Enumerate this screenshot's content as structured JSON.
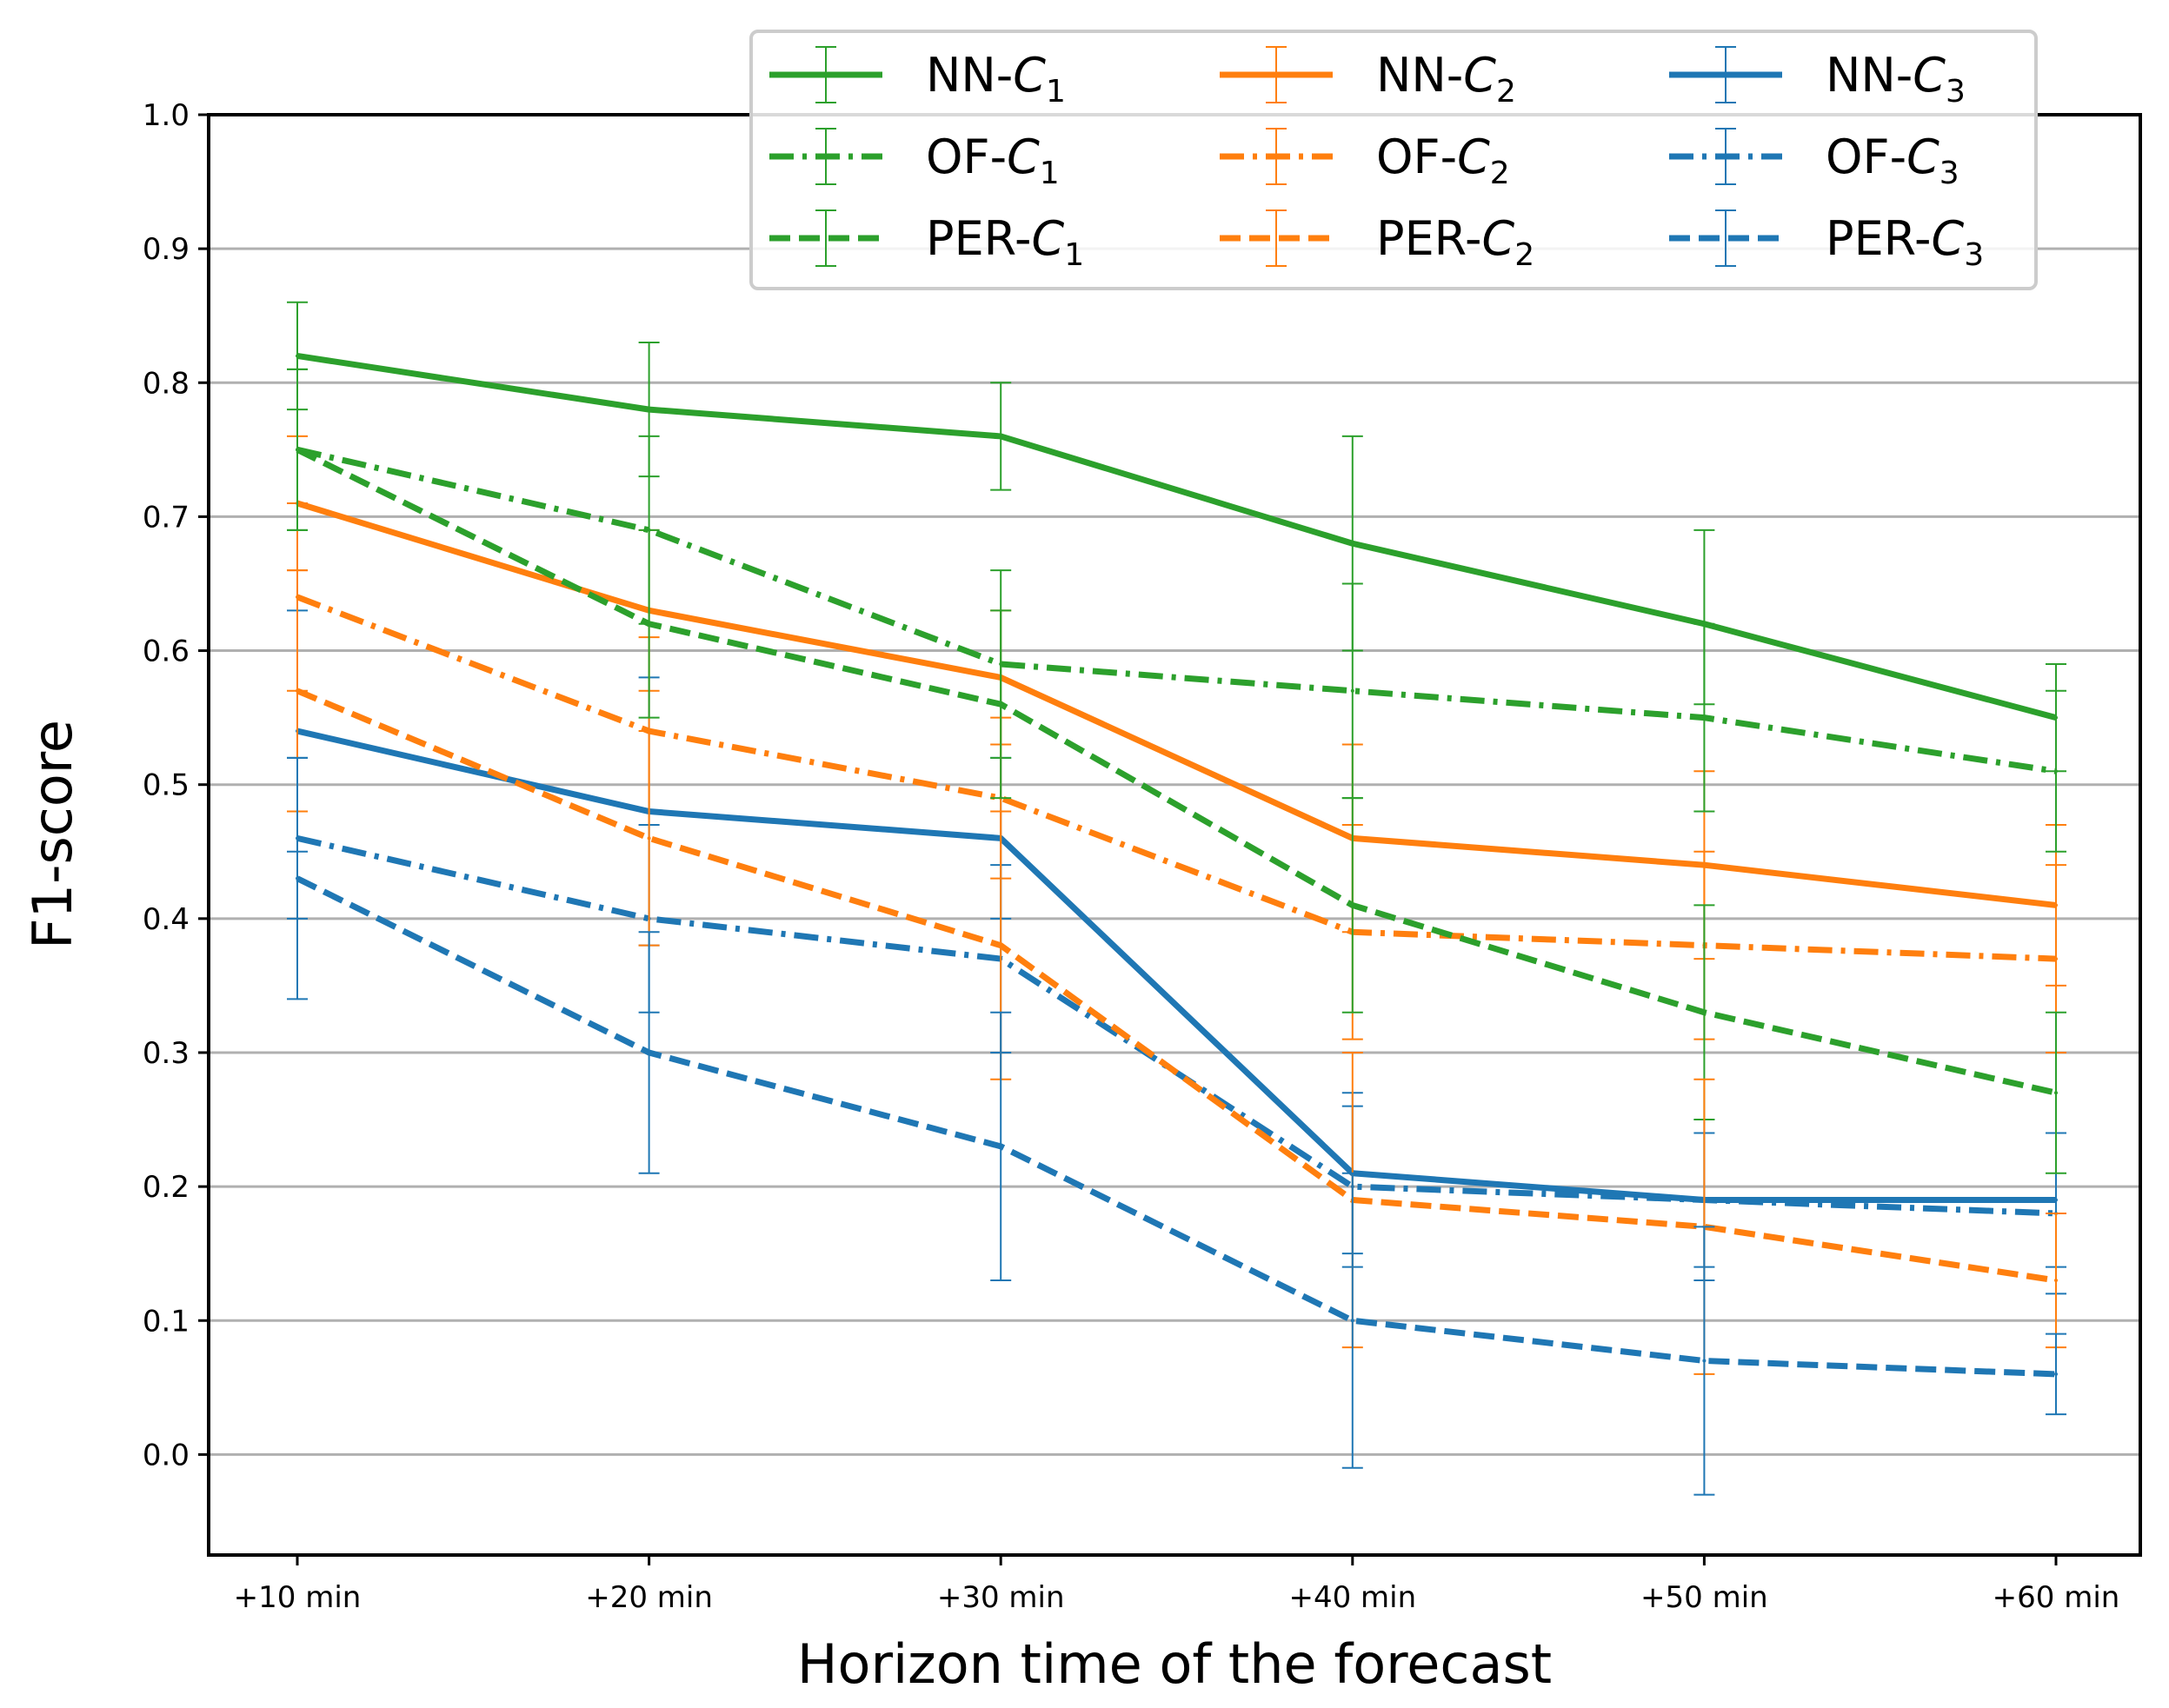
{
  "chart_data": {
    "type": "line",
    "title": "",
    "xlabel": "Horizon time of the forecast",
    "ylabel": "F1-score",
    "categories": [
      "+10 min",
      "+20 min",
      "+30 min",
      "+40 min",
      "+50 min",
      "+60 min"
    ],
    "ylim": [
      -0.075,
      1.0
    ],
    "yticks": [
      "0.0",
      "0.1",
      "0.2",
      "0.3",
      "0.4",
      "0.5",
      "0.6",
      "0.7",
      "0.8",
      "0.9",
      "1.0"
    ],
    "grid": "horizontal",
    "legend_position": "top-right",
    "series": [
      {
        "name": "NN-C1",
        "prefix": "NN-",
        "sub": "1",
        "color": "#2ca02c",
        "style": "solid",
        "values": [
          0.82,
          0.78,
          0.76,
          0.68,
          0.62,
          0.55
        ],
        "err_low": [
          0.78,
          0.73,
          0.72,
          0.6,
          0.56,
          0.51
        ],
        "err_high": [
          0.86,
          0.83,
          0.8,
          0.76,
          0.69,
          0.59
        ]
      },
      {
        "name": "NN-C2",
        "prefix": "NN-",
        "sub": "2",
        "color": "#ff7f0e",
        "style": "solid",
        "values": [
          0.71,
          0.63,
          0.58,
          0.46,
          0.44,
          0.41
        ],
        "err_low": [
          0.66,
          0.57,
          0.53,
          0.39,
          0.37,
          0.35
        ],
        "err_high": [
          0.76,
          0.69,
          0.63,
          0.53,
          0.51,
          0.47
        ]
      },
      {
        "name": "NN-C3",
        "prefix": "NN-",
        "sub": "3",
        "color": "#1f77b4",
        "style": "solid",
        "values": [
          0.54,
          0.48,
          0.46,
          0.21,
          0.19,
          0.19
        ],
        "err_low": [
          0.45,
          0.38,
          0.4,
          0.15,
          0.14,
          0.14
        ],
        "err_high": [
          0.63,
          0.58,
          0.52,
          0.27,
          0.24,
          0.24
        ]
      },
      {
        "name": "OF-C1",
        "prefix": "OF-",
        "sub": "1",
        "color": "#2ca02c",
        "style": "dashdot",
        "values": [
          0.75,
          0.69,
          0.59,
          0.57,
          0.55,
          0.51
        ],
        "err_low": [
          0.69,
          0.62,
          0.52,
          0.49,
          0.48,
          0.45
        ],
        "err_high": [
          0.81,
          0.76,
          0.66,
          0.65,
          0.62,
          0.57
        ]
      },
      {
        "name": "OF-C2",
        "prefix": "OF-",
        "sub": "2",
        "color": "#ff7f0e",
        "style": "dashdot",
        "values": [
          0.64,
          0.54,
          0.49,
          0.39,
          0.38,
          0.37
        ],
        "err_low": [
          0.57,
          0.47,
          0.43,
          0.31,
          0.31,
          0.3
        ],
        "err_high": [
          0.71,
          0.61,
          0.55,
          0.47,
          0.45,
          0.44
        ]
      },
      {
        "name": "OF-C3",
        "prefix": "OF-",
        "sub": "3",
        "color": "#1f77b4",
        "style": "dashdot",
        "values": [
          0.46,
          0.4,
          0.37,
          0.2,
          0.19,
          0.18
        ],
        "err_low": [
          0.4,
          0.33,
          0.3,
          0.14,
          0.13,
          0.12
        ],
        "err_high": [
          0.52,
          0.47,
          0.44,
          0.26,
          0.25,
          0.24
        ]
      },
      {
        "name": "PER-C1",
        "prefix": "PER-",
        "sub": "1",
        "color": "#2ca02c",
        "style": "dashed",
        "values": [
          0.75,
          0.62,
          0.56,
          0.41,
          0.33,
          0.27
        ],
        "err_low": [
          0.69,
          0.55,
          0.49,
          0.33,
          0.25,
          0.21
        ],
        "err_high": [
          0.81,
          0.69,
          0.63,
          0.49,
          0.41,
          0.33
        ]
      },
      {
        "name": "PER-C2",
        "prefix": "PER-",
        "sub": "2",
        "color": "#ff7f0e",
        "style": "dashed",
        "values": [
          0.57,
          0.46,
          0.38,
          0.19,
          0.17,
          0.13
        ],
        "err_low": [
          0.48,
          0.38,
          0.28,
          0.08,
          0.06,
          0.08
        ],
        "err_high": [
          0.66,
          0.54,
          0.48,
          0.3,
          0.28,
          0.18
        ]
      },
      {
        "name": "PER-C3",
        "prefix": "PER-",
        "sub": "3",
        "color": "#1f77b4",
        "style": "dashed",
        "values": [
          0.43,
          0.3,
          0.23,
          0.1,
          0.07,
          0.06
        ],
        "err_low": [
          0.34,
          0.21,
          0.13,
          -0.01,
          -0.03,
          0.03
        ],
        "err_high": [
          0.52,
          0.39,
          0.33,
          0.21,
          0.17,
          0.09
        ]
      }
    ]
  }
}
